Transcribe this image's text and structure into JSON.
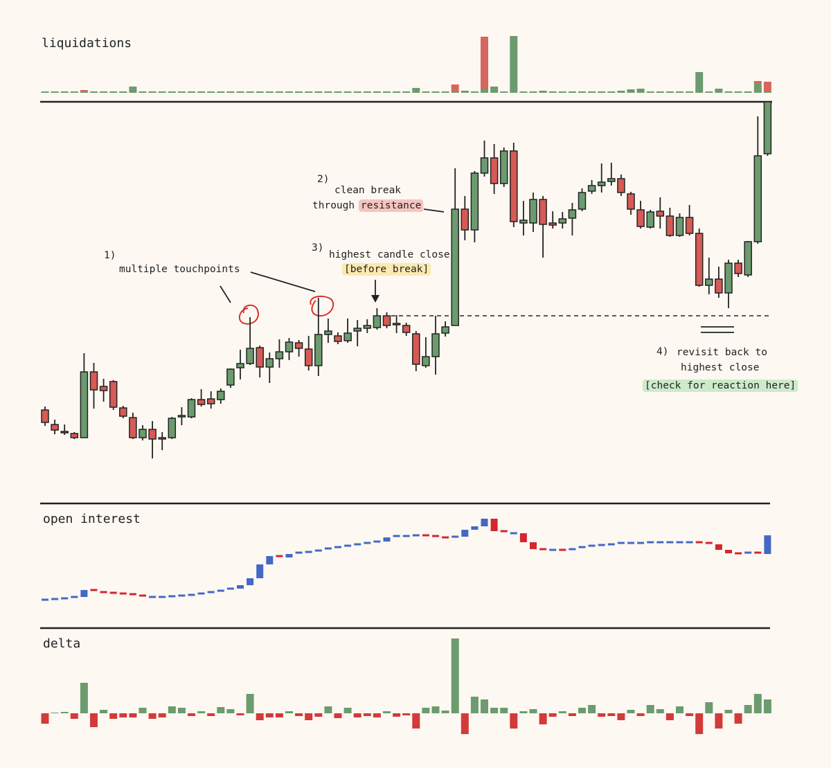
{
  "chart_data": [
    {
      "type": "candlestick",
      "ylim": [
        300,
        853
      ],
      "open": [
        408,
        387,
        377,
        374,
        368,
        463,
        442,
        449,
        411,
        397,
        368,
        380,
        368,
        368,
        398,
        398,
        423,
        424,
        423,
        444,
        469,
        475,
        498,
        470,
        482,
        492,
        505,
        496,
        472,
        517,
        515,
        508,
        522,
        526,
        527,
        544,
        533,
        530,
        518,
        472,
        485,
        519,
        530,
        698,
        668,
        750,
        772,
        735,
        782,
        678,
        678,
        712,
        678,
        678,
        685,
        698,
        724,
        732,
        738,
        742,
        720,
        697,
        672,
        695,
        688,
        660,
        686,
        663,
        588,
        597,
        577,
        620,
        603,
        651,
        778
      ],
      "high": [
        413,
        394,
        387,
        376,
        490,
        476,
        453,
        451,
        414,
        404,
        386,
        392,
        376,
        398,
        412,
        425,
        438,
        435,
        439,
        468,
        495,
        542,
        501,
        491,
        510,
        512,
        509,
        515,
        570,
        540,
        520,
        540,
        538,
        539,
        555,
        549,
        545,
        534,
        522,
        513,
        544,
        536,
        757,
        717,
        753,
        797,
        792,
        787,
        794,
        710,
        722,
        717,
        695,
        694,
        707,
        728,
        740,
        764,
        765,
        748,
        723,
        710,
        697,
        715,
        700,
        692,
        704,
        670,
        628,
        615,
        625,
        625,
        652,
        832,
        853
      ],
      "low": [
        385,
        373,
        372,
        366,
        368,
        410,
        420,
        408,
        396,
        366,
        364,
        338,
        350,
        366,
        386,
        396,
        413,
        410,
        417,
        440,
        452,
        473,
        455,
        447,
        469,
        480,
        485,
        465,
        457,
        505,
        503,
        505,
        500,
        519,
        524,
        526,
        519,
        515,
        464,
        469,
        459,
        514,
        530,
        653,
        650,
        745,
        720,
        730,
        672,
        660,
        665,
        628,
        670,
        670,
        660,
        695,
        720,
        722,
        732,
        717,
        690,
        670,
        670,
        670,
        658,
        658,
        660,
        586,
        575,
        570,
        555,
        600,
        600,
        648,
        775
      ],
      "close": [
        390,
        379,
        375,
        368,
        463,
        437,
        436,
        412,
        399,
        368,
        380,
        366,
        366,
        396,
        400,
        423,
        416,
        417,
        435,
        467,
        475,
        497,
        470,
        482,
        492,
        506,
        497,
        472,
        517,
        522,
        507,
        519,
        526,
        530,
        544,
        530,
        531,
        520,
        474,
        485,
        518,
        528,
        698,
        668,
        750,
        772,
        735,
        782,
        680,
        682,
        712,
        676,
        675,
        684,
        697,
        722,
        732,
        737,
        742,
        722,
        698,
        673,
        694,
        688,
        660,
        686,
        663,
        588,
        597,
        577,
        620,
        605,
        651,
        775,
        853
      ],
      "up_color": "#6b9b6e",
      "down_color": "#d65a55",
      "annotations": [
        "1)",
        "multiple touchpoints",
        "2)",
        "clean break",
        "through",
        "resistance",
        "3)",
        "highest candle close",
        "[before break]",
        "4)",
        "revisit back to",
        "highest close",
        "[check for reaction here]"
      ]
    },
    {
      "type": "bar",
      "title": "liquidations",
      "stacked": true,
      "ylim": [
        0,
        90
      ],
      "series": [
        {
          "color": "#6b9b6e",
          "values": [
            2,
            2,
            2,
            2,
            2,
            2,
            2,
            2,
            2,
            9,
            2,
            2,
            2,
            2,
            2,
            2,
            2,
            2,
            2,
            2,
            2,
            2,
            2,
            2,
            2,
            2,
            2,
            2,
            2,
            2,
            2,
            2,
            2,
            2,
            2,
            2,
            2,
            2,
            7,
            2,
            2,
            2,
            2,
            3,
            2,
            6,
            9,
            2,
            82,
            2,
            2,
            3,
            2,
            2,
            2,
            2,
            2,
            2,
            2,
            3,
            5,
            6,
            2,
            2,
            2,
            2,
            2,
            30,
            2,
            6,
            2,
            2,
            2,
            14,
            2
          ]
        },
        {
          "color": "#d9655f",
          "values": [
            0,
            0,
            0,
            0,
            2,
            0,
            0,
            0,
            0,
            0,
            0,
            0,
            0,
            0,
            0,
            0,
            0,
            0,
            0,
            0,
            0,
            0,
            0,
            0,
            0,
            0,
            0,
            0,
            0,
            0,
            0,
            0,
            0,
            0,
            0,
            0,
            0,
            0,
            0,
            0,
            0,
            0,
            10,
            0,
            0,
            75,
            0,
            0,
            0,
            0,
            0,
            0,
            0,
            0,
            0,
            0,
            0,
            0,
            0,
            0,
            0,
            0,
            0,
            0,
            0,
            0,
            0,
            0,
            0,
            0,
            0,
            0,
            0,
            3,
            14
          ]
        }
      ]
    },
    {
      "type": "oi",
      "title": "open interest",
      "ylim": [
        120,
        260
      ],
      "up_color": "#4369c4",
      "down_color": "#d3262d",
      "values": [
        134,
        135,
        136,
        138,
        148,
        145,
        144,
        143,
        142,
        140,
        138,
        138,
        138,
        139,
        140,
        141,
        143,
        145,
        147,
        150,
        155,
        165,
        185,
        197,
        195,
        200,
        202,
        203,
        205,
        208,
        210,
        212,
        214,
        216,
        218,
        224,
        226,
        226,
        227,
        226,
        224,
        223,
        225,
        235,
        240,
        251,
        233,
        230,
        230,
        217,
        207,
        206,
        206,
        205,
        207,
        210,
        212,
        213,
        214,
        216,
        216,
        216,
        217,
        217,
        217,
        217,
        217,
        216,
        214,
        206,
        201,
        200,
        202,
        200,
        227
      ]
    },
    {
      "type": "delta",
      "title": "delta",
      "ylim": [
        -40,
        110
      ],
      "up_color": "#6b9b6e",
      "down_color": "#d33a3a",
      "values": [
        -15,
        1,
        2,
        -8,
        44,
        -20,
        5,
        -8,
        -6,
        -6,
        8,
        -8,
        -6,
        10,
        8,
        -4,
        3,
        -4,
        9,
        6,
        -3,
        28,
        -10,
        -6,
        -6,
        3,
        -4,
        -10,
        -5,
        10,
        -7,
        8,
        -6,
        -4,
        -6,
        3,
        -5,
        -3,
        -22,
        8,
        10,
        4,
        108,
        -30,
        24,
        20,
        8,
        8,
        -22,
        3,
        6,
        -16,
        -5,
        3,
        -4,
        8,
        12,
        -5,
        -4,
        -10,
        5,
        -4,
        12,
        6,
        -10,
        10,
        -4,
        -30,
        16,
        -22,
        5,
        -15,
        12,
        28,
        20
      ]
    }
  ]
}
